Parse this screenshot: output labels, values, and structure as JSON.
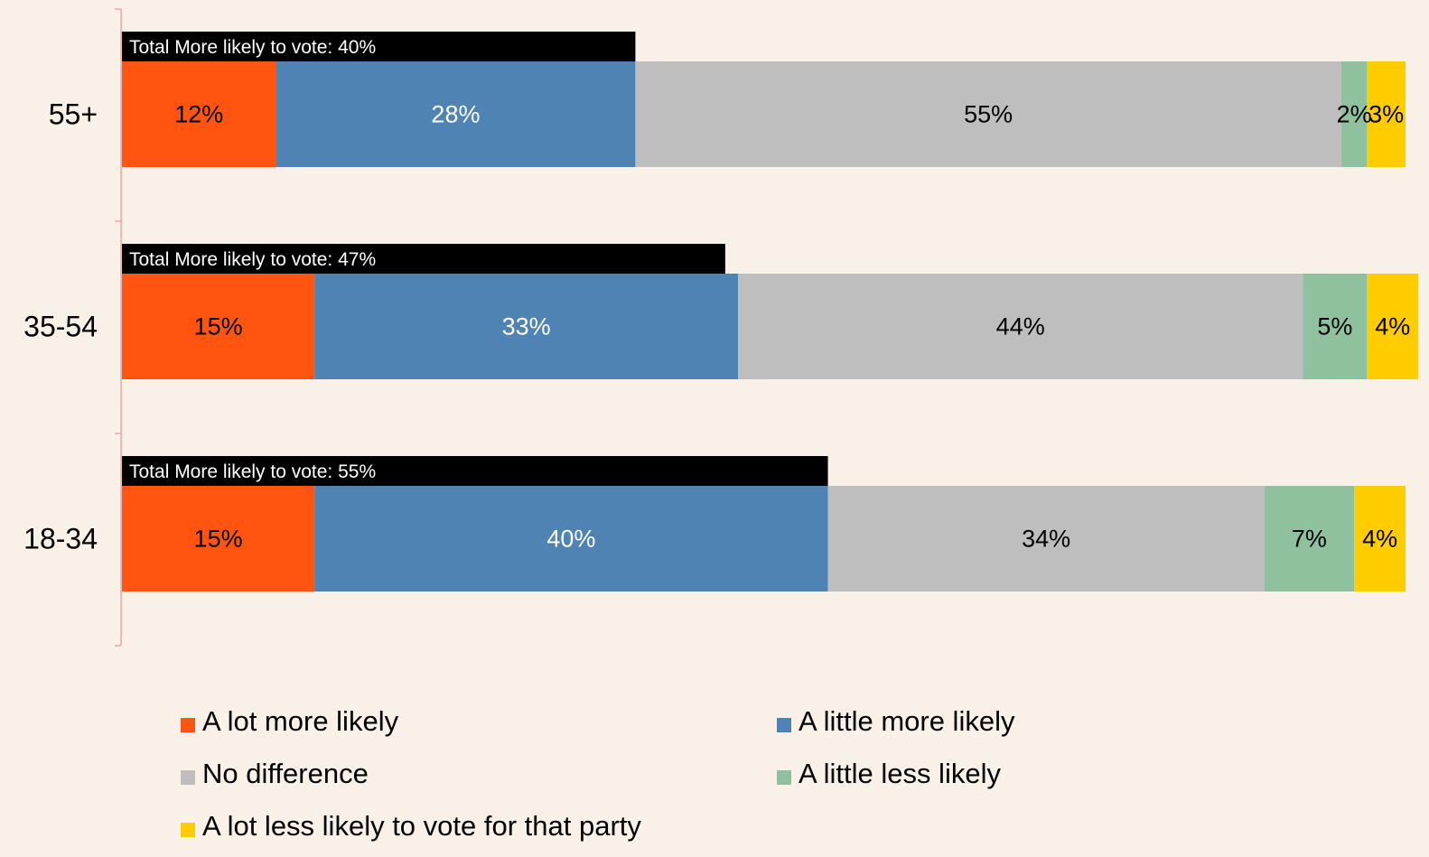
{
  "chart_data": {
    "type": "bar",
    "orientation": "horizontal",
    "stacked": true,
    "title": "",
    "xlabel": "",
    "ylabel": "",
    "xlim": [
      0,
      100
    ],
    "grid": false,
    "legend_position": "bottom",
    "categories": [
      "55+",
      "35-54",
      "18-34"
    ],
    "series": [
      {
        "name": "A lot more likely",
        "color": "#ff5510",
        "label_color": "#000000",
        "values": [
          12,
          15,
          15
        ],
        "labels": [
          "12%",
          "15%",
          "15%"
        ]
      },
      {
        "name": "A little more likely",
        "color": "#4f83b3",
        "label_color": "#ffffff",
        "values": [
          28,
          33,
          40
        ],
        "labels": [
          "28%",
          "33%",
          "40%"
        ]
      },
      {
        "name": "No difference",
        "color": "#bebebe",
        "label_color": "#000000",
        "values": [
          55,
          44,
          34
        ],
        "labels": [
          "55%",
          "44%",
          "34%"
        ]
      },
      {
        "name": "A little less likely",
        "color": "#8fc19e",
        "label_color": "#000000",
        "values": [
          2,
          5,
          7
        ],
        "labels": [
          "2%",
          "5%",
          "7%"
        ]
      },
      {
        "name": "A lot less likely to vote for that party",
        "color": "#ffcc00",
        "label_color": "#000000",
        "values": [
          3,
          4,
          4
        ],
        "labels": [
          "3%",
          "4%",
          "4%"
        ]
      }
    ],
    "totals": {
      "values": [
        40,
        47,
        55
      ],
      "labels": [
        "Total More likely to vote: 40%",
        "Total More likely to vote: 47%",
        "Total More likely to vote: 55%"
      ],
      "color": "#000000"
    }
  }
}
